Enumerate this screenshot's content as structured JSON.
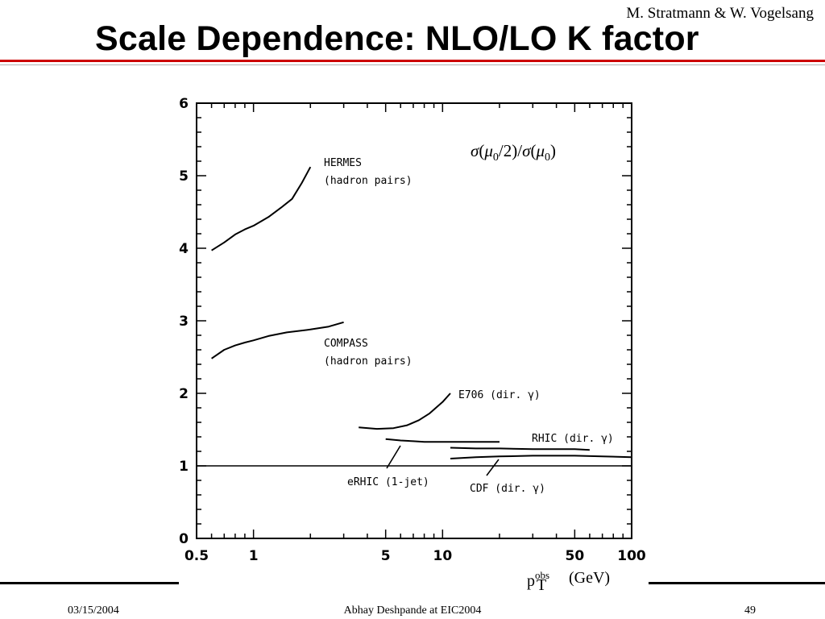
{
  "slide": {
    "author": "M. Stratmann & W. Vogelsang",
    "title": "Scale Dependence: NLO/LO K factor",
    "footer_date": "03/15/2004",
    "footer_center": "Abhay Deshpande at EIC2004",
    "page_number": "49"
  },
  "colors": {
    "accent_rule": "#cc0000",
    "ink": "#000000"
  },
  "chart_data": {
    "type": "line",
    "x_scale": "log",
    "xlim": [
      0.5,
      100
    ],
    "ylim": [
      0,
      6
    ],
    "x_ticks": [
      "0.5",
      "1",
      "5",
      "10",
      "50",
      "100"
    ],
    "y_ticks": [
      "0",
      "1",
      "2",
      "3",
      "4",
      "5",
      "6"
    ],
    "xlabel": "p_T^obs (GeV)",
    "xlabel_main": "p",
    "xlabel_sub": "T",
    "xlabel_sup": "obs",
    "xlabel_unit": "(GeV)",
    "annotation": "σ(μ0/2)/σ(μ0)",
    "grid": false,
    "series": [
      {
        "name": "HERMES (hadron pairs)",
        "name_lines": [
          "HERMES",
          "(hadron pairs)"
        ],
        "x": [
          0.6,
          0.7,
          0.8,
          0.9,
          1.0,
          1.2,
          1.4,
          1.6,
          1.8,
          2.0
        ],
        "y": [
          3.97,
          4.08,
          4.19,
          4.26,
          4.31,
          4.43,
          4.56,
          4.68,
          4.9,
          5.12
        ]
      },
      {
        "name": "COMPASS (hadron pairs)",
        "name_lines": [
          "COMPASS",
          "(hadron pairs)"
        ],
        "x": [
          0.6,
          0.7,
          0.8,
          0.9,
          1.0,
          1.2,
          1.5,
          2.0,
          2.5,
          3.0
        ],
        "y": [
          2.48,
          2.6,
          2.66,
          2.7,
          2.73,
          2.79,
          2.84,
          2.88,
          2.92,
          2.98
        ]
      },
      {
        "name": "E706 (dir. γ)",
        "x": [
          3.6,
          4.5,
          5.5,
          6.5,
          7.5,
          8.5,
          10,
          11
        ],
        "y": [
          1.53,
          1.51,
          1.52,
          1.56,
          1.63,
          1.72,
          1.88,
          2.0
        ]
      },
      {
        "name": "eRHIC (1-jet)",
        "x": [
          5,
          6,
          7,
          8,
          10,
          12,
          15,
          20
        ],
        "y": [
          1.37,
          1.35,
          1.34,
          1.33,
          1.33,
          1.33,
          1.33,
          1.33
        ]
      },
      {
        "name": "RHIC (dir. γ)",
        "x": [
          11,
          15,
          20,
          30,
          40,
          50,
          60
        ],
        "y": [
          1.25,
          1.24,
          1.24,
          1.23,
          1.23,
          1.23,
          1.22
        ]
      },
      {
        "name": "CDF (dir. γ)",
        "x": [
          11,
          15,
          20,
          30,
          50,
          70,
          100
        ],
        "y": [
          1.1,
          1.12,
          1.13,
          1.14,
          1.14,
          1.13,
          1.12
        ]
      },
      {
        "name": "",
        "x": [
          0.5,
          100
        ],
        "y": [
          1,
          1
        ]
      }
    ]
  }
}
